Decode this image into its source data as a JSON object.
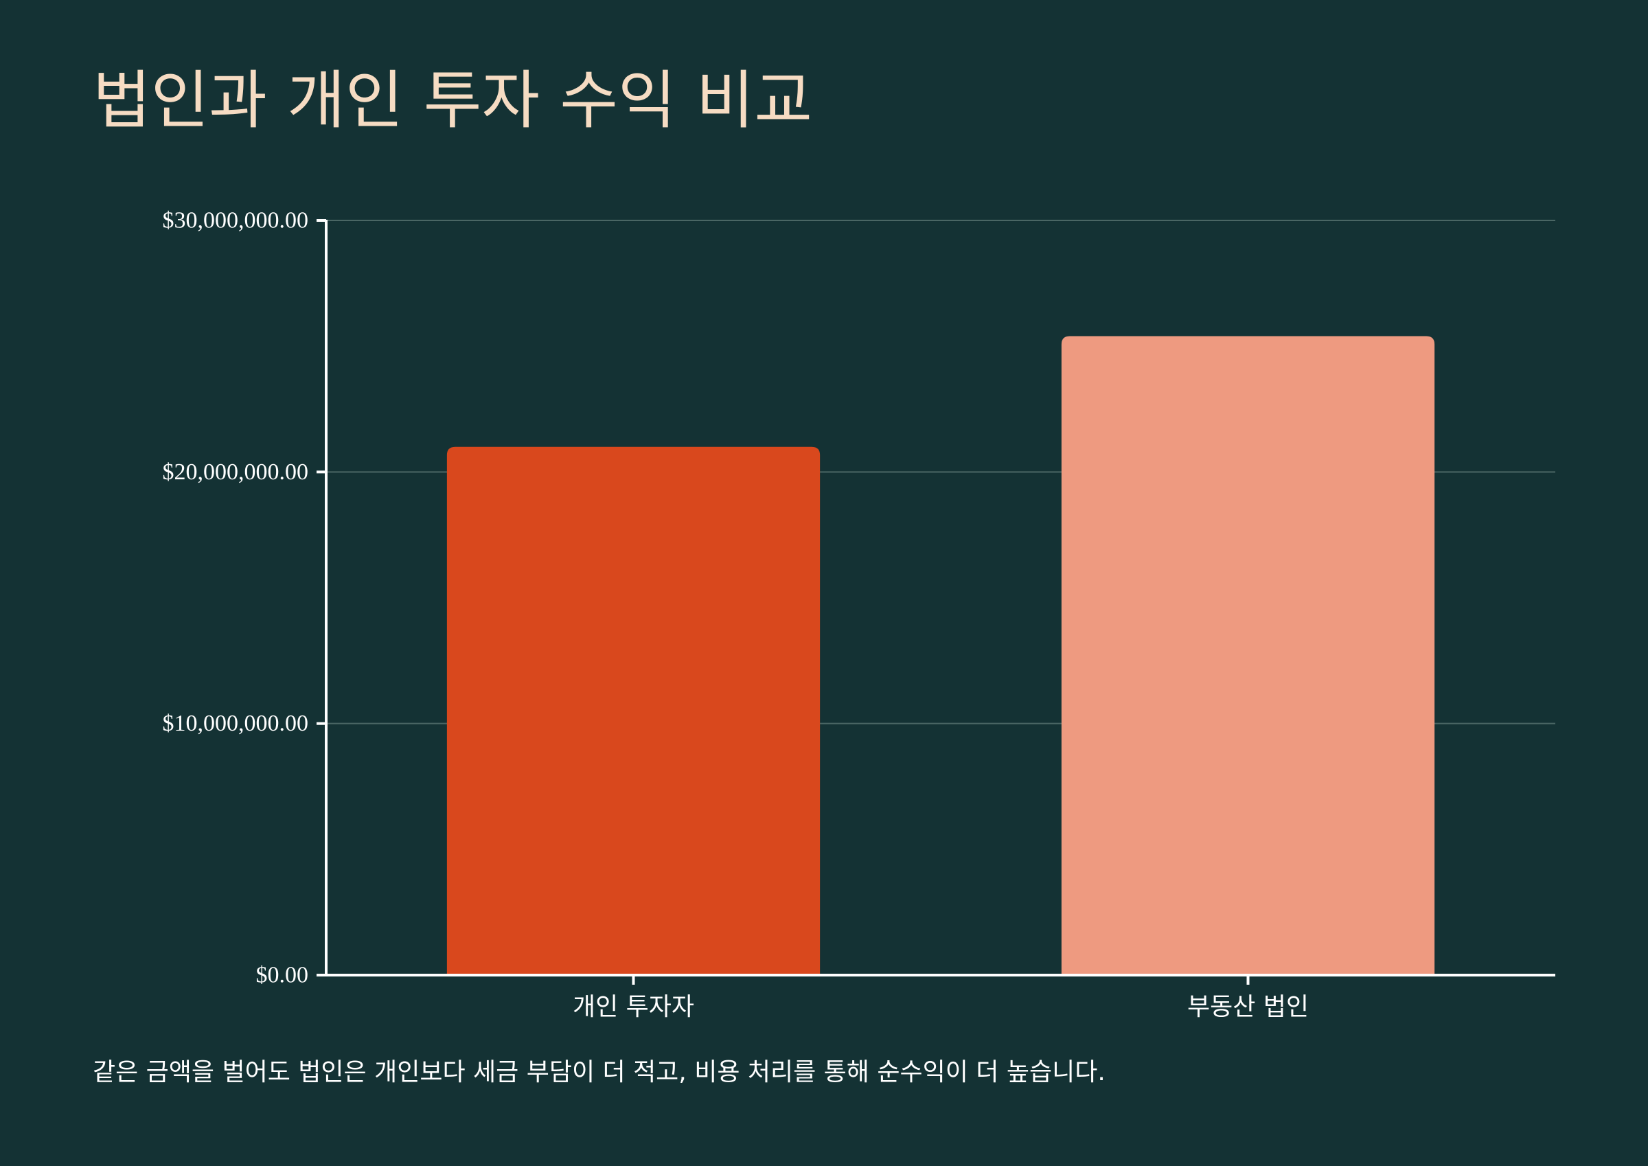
{
  "title": "법인과 개인 투자 수익 비교",
  "caption": "같은 금액을 벌어도 법인은 개인보다 세금 부담이 더 적고, 비용 처리를 통해 순수익이 더 높습니다.",
  "colors": {
    "background": "#143234",
    "title": "#f6dcc3",
    "axis": "#ffffff",
    "grid": "#4a6664"
  },
  "chart_data": {
    "type": "bar",
    "categories": [
      "개인 투자자",
      "부동산 법인"
    ],
    "values": [
      21000000,
      25400000
    ],
    "bar_colors": [
      "#d9481d",
      "#ee9a80"
    ],
    "ylim": [
      0,
      30000000
    ],
    "yticks": [
      0,
      10000000,
      20000000,
      30000000
    ],
    "ytick_labels": [
      "$0.00",
      "$10,000,000.00",
      "$20,000,000.00",
      "$30,000,000.00"
    ],
    "grid": true,
    "xlabel": "",
    "ylabel": ""
  }
}
